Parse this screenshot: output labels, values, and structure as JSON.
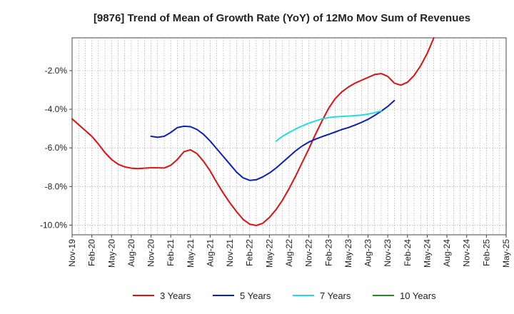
{
  "chart_data": {
    "type": "line",
    "title": "[9876]  Trend of Mean of Growth Rate (YoY) of 12Mo Mov Sum of Revenues",
    "xlabel": "",
    "ylabel": "",
    "x_tick_labels": [
      "Nov-19",
      "Feb-20",
      "May-20",
      "Aug-20",
      "Nov-20",
      "Feb-21",
      "May-21",
      "Aug-21",
      "Nov-21",
      "Feb-22",
      "May-22",
      "Aug-22",
      "Nov-22",
      "Feb-23",
      "May-23",
      "Aug-23",
      "Nov-23",
      "Feb-24",
      "May-24",
      "Aug-24",
      "Nov-24",
      "Feb-25",
      "May-25"
    ],
    "y_ticks": [
      -10.0,
      -8.0,
      -6.0,
      -4.0,
      -2.0
    ],
    "y_tick_labels": [
      "-10.0%",
      "-8.0%",
      "-6.0%",
      "-4.0%",
      "-2.0%"
    ],
    "ylim": [
      -10.5,
      -0.3
    ],
    "x_count": 67,
    "grid": true,
    "legend_position": "bottom",
    "series": [
      {
        "name": "3 Years",
        "color": "#dd1111",
        "start_index": 0,
        "values": [
          -4.5,
          -4.8,
          -5.1,
          -5.4,
          -5.8,
          -6.25,
          -6.6,
          -6.85,
          -6.98,
          -7.05,
          -7.07,
          -7.05,
          -7.03,
          -7.03,
          -7.04,
          -6.9,
          -6.6,
          -6.2,
          -6.1,
          -6.3,
          -6.7,
          -7.2,
          -7.8,
          -8.35,
          -8.85,
          -9.3,
          -9.7,
          -9.95,
          -10.02,
          -9.9,
          -9.6,
          -9.2,
          -8.7,
          -8.1,
          -7.45,
          -6.75,
          -6.05,
          -5.3,
          -4.6,
          -3.95,
          -3.45,
          -3.1,
          -2.85,
          -2.65,
          -2.5,
          -2.35,
          -2.2,
          -2.15,
          -2.3,
          -2.65,
          -2.75,
          -2.6,
          -2.25,
          -1.75,
          -1.1,
          -0.3
        ]
      },
      {
        "name": "5 Years",
        "color": "#0b1fbf",
        "start_index": 12,
        "values": [
          -5.4,
          -5.45,
          -5.4,
          -5.2,
          -4.95,
          -4.88,
          -4.9,
          -5.05,
          -5.3,
          -5.65,
          -6.05,
          -6.45,
          -6.85,
          -7.25,
          -7.55,
          -7.68,
          -7.65,
          -7.5,
          -7.3,
          -7.05,
          -6.75,
          -6.45,
          -6.15,
          -5.9,
          -5.7,
          -5.55,
          -5.42,
          -5.3,
          -5.18,
          -5.05,
          -4.95,
          -4.82,
          -4.68,
          -4.52,
          -4.32,
          -4.1,
          -3.85,
          -3.55
        ]
      },
      {
        "name": "7 Years",
        "color": "#22dddd",
        "start_index": 31,
        "values": [
          -5.65,
          -5.4,
          -5.2,
          -5.02,
          -4.86,
          -4.72,
          -4.6,
          -4.5,
          -4.43,
          -4.39,
          -4.37,
          -4.35,
          -4.33,
          -4.3,
          -4.25,
          -4.18,
          -4.08
        ]
      },
      {
        "name": "10 Years",
        "color": "#228b22",
        "start_index": 0,
        "values": []
      }
    ]
  }
}
